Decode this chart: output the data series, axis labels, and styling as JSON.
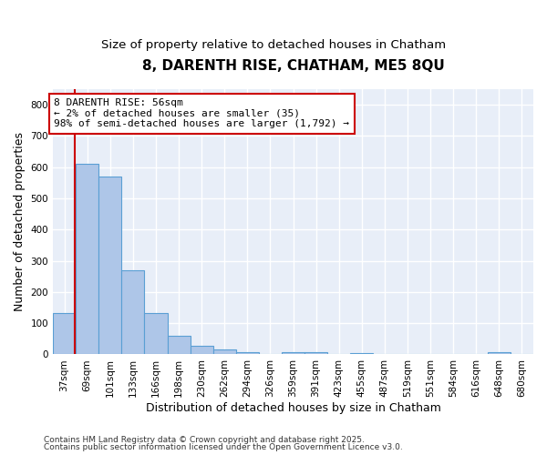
{
  "title": "8, DARENTH RISE, CHATHAM, ME5 8QU",
  "subtitle": "Size of property relative to detached houses in Chatham",
  "xlabel": "Distribution of detached houses by size in Chatham",
  "ylabel": "Number of detached properties",
  "categories": [
    "37sqm",
    "69sqm",
    "101sqm",
    "133sqm",
    "166sqm",
    "198sqm",
    "230sqm",
    "262sqm",
    "294sqm",
    "326sqm",
    "359sqm",
    "391sqm",
    "423sqm",
    "455sqm",
    "487sqm",
    "519sqm",
    "551sqm",
    "584sqm",
    "616sqm",
    "648sqm",
    "680sqm"
  ],
  "values": [
    133,
    610,
    570,
    270,
    133,
    60,
    28,
    15,
    8,
    0,
    8,
    8,
    0,
    5,
    0,
    0,
    0,
    0,
    0,
    8,
    0
  ],
  "bar_color": "#aec6e8",
  "bar_edge_color": "#5a9fd4",
  "bar_linewidth": 0.8,
  "ylim": [
    0,
    850
  ],
  "yticks": [
    0,
    100,
    200,
    300,
    400,
    500,
    600,
    700,
    800
  ],
  "property_line_x": 0.47,
  "property_line_color": "#cc0000",
  "annotation_text": "8 DARENTH RISE: 56sqm\n← 2% of detached houses are smaller (35)\n98% of semi-detached houses are larger (1,792) →",
  "annotation_box_color": "#ffffff",
  "annotation_box_edge": "#cc0000",
  "background_color": "#e8eef8",
  "grid_color": "#ffffff",
  "title_fontsize": 11,
  "subtitle_fontsize": 9.5,
  "xlabel_fontsize": 9,
  "ylabel_fontsize": 9,
  "tick_fontsize": 7.5,
  "annotation_fontsize": 8,
  "footer_line1": "Contains HM Land Registry data © Crown copyright and database right 2025.",
  "footer_line2": "Contains public sector information licensed under the Open Government Licence v3.0."
}
